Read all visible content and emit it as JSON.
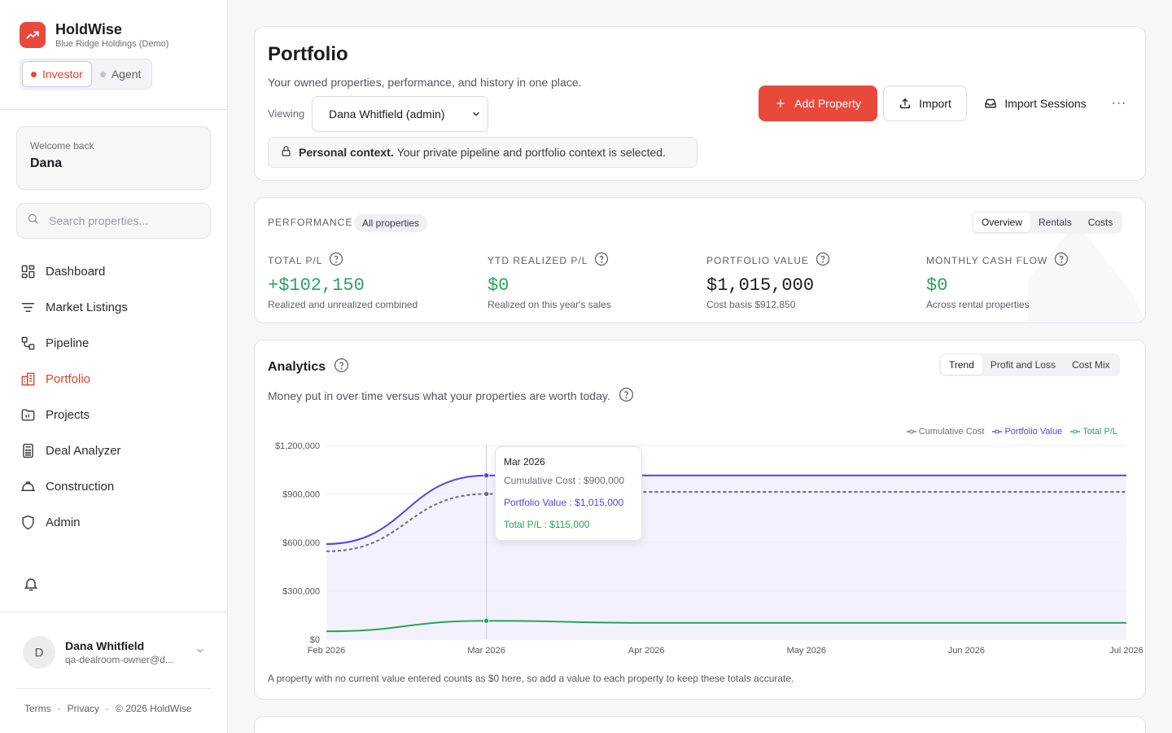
{
  "brand": {
    "name": "HoldWise",
    "subtitle": "Blue Ridge Holdings (Demo)",
    "icon": "trending-up-icon",
    "accent": "#e9493b"
  },
  "mode": {
    "investor": "Investor",
    "agent": "Agent",
    "active": "Investor"
  },
  "welcome": {
    "label": "Welcome back",
    "name": "Dana"
  },
  "search": {
    "placeholder": "Search properties..."
  },
  "nav": [
    {
      "label": "Dashboard",
      "icon": "dashboard-icon"
    },
    {
      "label": "Market Listings",
      "icon": "filter-lines-icon"
    },
    {
      "label": "Pipeline",
      "icon": "pipeline-icon"
    },
    {
      "label": "Portfolio",
      "icon": "building-icon",
      "active": true
    },
    {
      "label": "Projects",
      "icon": "folder-icon"
    },
    {
      "label": "Deal Analyzer",
      "icon": "calculator-icon"
    },
    {
      "label": "Construction",
      "icon": "hard-hat-icon"
    },
    {
      "label": "Admin",
      "icon": "shield-icon"
    }
  ],
  "user": {
    "initial": "D",
    "name": "Dana Whitfield",
    "email": "qa-dealroom-owner@d..."
  },
  "footer": {
    "terms": "Terms",
    "privacy": "Privacy",
    "copyright": "© 2026 HoldWise",
    "sep": "·"
  },
  "header": {
    "title": "Portfolio",
    "subtitle": "Your owned properties, performance, and history in one place.",
    "viewing_label": "Viewing",
    "viewing_value": "Dana Whitfield (admin)",
    "context_bold": "Personal context.",
    "context_text": "Your private pipeline and portfolio context is selected.",
    "add_property": "Add Property",
    "import": "Import",
    "import_sessions": "Import Sessions",
    "more": "···"
  },
  "performance": {
    "label": "PERFORMANCE",
    "chip": "All properties",
    "tabs": [
      "Overview",
      "Rentals",
      "Costs"
    ],
    "active_tab": "Overview",
    "metrics": [
      {
        "label": "TOTAL P/L",
        "value": "+$102,150",
        "sub": "Realized and unrealized combined",
        "green": true
      },
      {
        "label": "YTD REALIZED P/L",
        "value": "$0",
        "sub": "Realized on this year's sales",
        "green": true
      },
      {
        "label": "PORTFOLIO VALUE",
        "value": "$1,015,000",
        "sub": "Cost basis $912,850",
        "green": false
      },
      {
        "label": "MONTHLY CASH FLOW",
        "value": "$0",
        "sub": "Across rental properties",
        "green": true
      }
    ]
  },
  "analytics": {
    "title": "Analytics",
    "subtitle": "Money put in over time versus what your properties are worth today.",
    "tabs": [
      "Trend",
      "Profit and Loss",
      "Cost Mix"
    ],
    "active_tab": "Trend",
    "footnote": "A property with no current value entered counts as $0 here, so add a value to each property to keep these totals accurate.",
    "tooltip": {
      "title": "Mar 2026",
      "cost": "Cumulative Cost : $900,000",
      "value": "Portfolio Value : $1,015,000",
      "pl": "Total P/L : $115,000"
    }
  },
  "chart_data": {
    "type": "line",
    "x": [
      "Feb 2026",
      "Mar 2026",
      "Apr 2026",
      "May 2026",
      "Jun 2026",
      "Jul 2026"
    ],
    "ylim": [
      0,
      1200000
    ],
    "yticks": [
      "$0",
      "$300,000",
      "$600,000",
      "$900,000",
      "$1,200,000"
    ],
    "series": [
      {
        "name": "Cumulative Cost",
        "color": "#6b6e75",
        "dashed": true,
        "values": [
          545000,
          900000,
          912850,
          912850,
          912850,
          912850
        ]
      },
      {
        "name": "Portfolio Value",
        "color": "#4f46e5",
        "values": [
          590000,
          1015000,
          1015000,
          1015000,
          1015000,
          1015000
        ]
      },
      {
        "name": "Total P/L",
        "color": "#28a45a",
        "values": [
          50000,
          115000,
          102150,
          102150,
          102150,
          102150
        ]
      }
    ],
    "grid": true,
    "legend": "top-right"
  }
}
